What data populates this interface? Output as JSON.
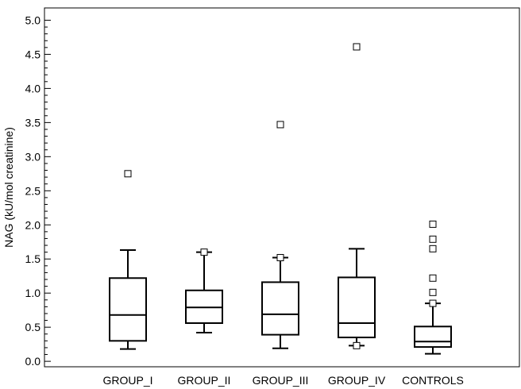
{
  "chart_data": {
    "type": "box",
    "title": "",
    "xlabel": "",
    "ylabel": "NAG (kU/mol creatinine)",
    "ylim": [
      -0.08,
      5.18
    ],
    "yticks": [
      0.0,
      0.5,
      1.0,
      1.5,
      2.0,
      2.5,
      3.0,
      3.5,
      4.0,
      4.5,
      5.0
    ],
    "ytick_labels": [
      "0.0",
      "0.5",
      "1.0",
      "1.5",
      "2.0",
      "2.5",
      "3.0",
      "3.5",
      "4.0",
      "4.5",
      "5.0"
    ],
    "yminor_step": 0.1,
    "grid": false,
    "categories": [
      "GROUP_I",
      "GROUP_II",
      "GROUP_III",
      "GROUP_IV",
      "CONTROLS"
    ],
    "boxes": [
      {
        "whisker_low": 0.18,
        "q1": 0.3,
        "median": 0.68,
        "q3": 1.22,
        "whisker_high": 1.63,
        "outliers": [
          2.75
        ]
      },
      {
        "whisker_low": 0.42,
        "q1": 0.56,
        "median": 0.79,
        "q3": 1.04,
        "whisker_high": 1.6,
        "outliers": [
          1.6
        ]
      },
      {
        "whisker_low": 0.19,
        "q1": 0.39,
        "median": 0.69,
        "q3": 1.16,
        "whisker_high": 1.52,
        "outliers": [
          1.52,
          3.47
        ]
      },
      {
        "whisker_low": 0.23,
        "q1": 0.35,
        "median": 0.56,
        "q3": 1.23,
        "whisker_high": 1.65,
        "outliers": [
          0.23,
          4.61
        ]
      },
      {
        "whisker_low": 0.11,
        "q1": 0.21,
        "median": 0.29,
        "q3": 0.51,
        "whisker_high": 0.85,
        "outliers": [
          0.85,
          1.01,
          1.22,
          1.65,
          1.79,
          2.01
        ]
      }
    ]
  }
}
